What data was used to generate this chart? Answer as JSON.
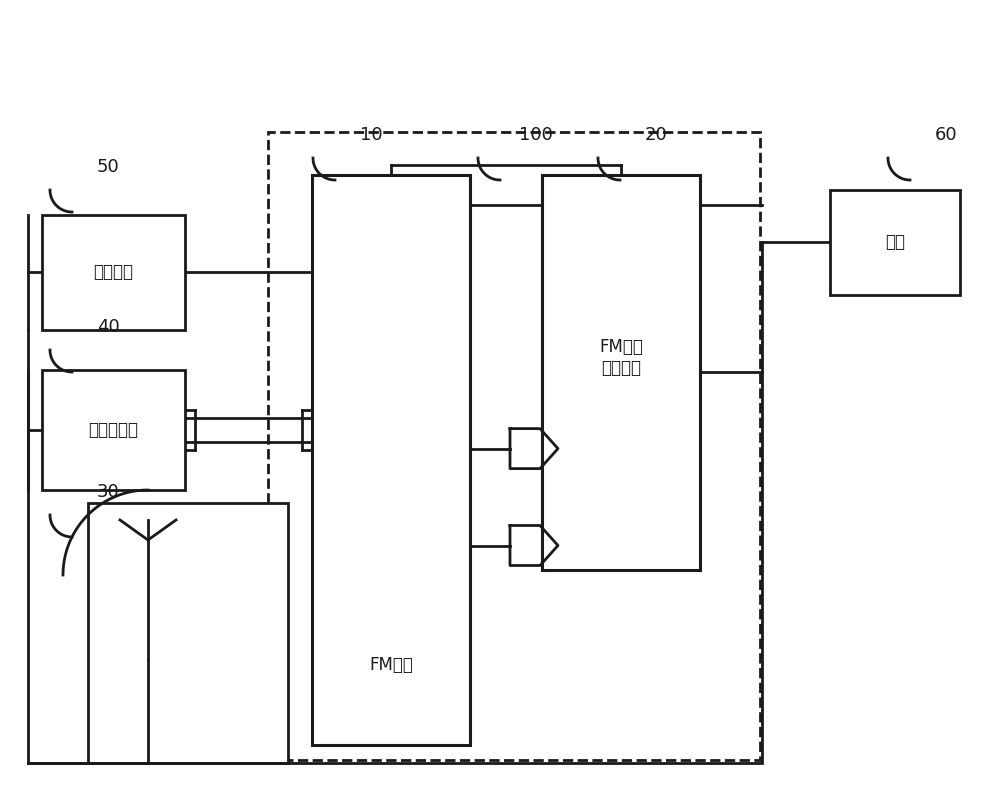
{
  "bg_color": "#ffffff",
  "line_color": "#1a1a1a",
  "lw": 2.0,
  "lw_thick": 2.2,
  "fig_width": 10.0,
  "fig_height": 8.05,
  "dpi": 100,
  "labels": {
    "clock": "时钟电路",
    "central": "中央控制器",
    "fm_unit": "FM单元",
    "fm_power": "FM线性\n供电单元",
    "power": "电源",
    "n10": "10",
    "n20": "20",
    "n30": "30",
    "n40": "40",
    "n50": "50",
    "n60": "60",
    "n100": "100"
  },
  "font_size": 13,
  "font_size_label": 12
}
